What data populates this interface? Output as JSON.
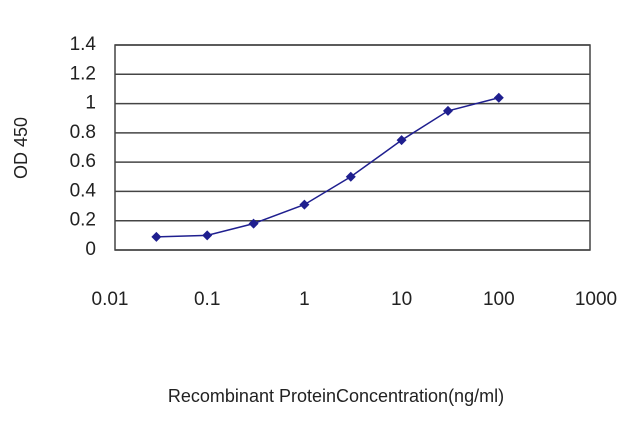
{
  "chart_data": {
    "type": "line",
    "x_label": "Recombinant ProteinConcentration(ng/ml)",
    "y_label": "OD 450",
    "x": [
      0.03,
      0.1,
      0.3,
      1,
      3,
      10,
      30,
      100
    ],
    "series": [
      {
        "color": "#1f1f8f",
        "values": [
          0.09,
          0.1,
          0.18,
          0.31,
          0.5,
          0.75,
          0.95,
          1.04
        ]
      }
    ],
    "xlim": [
      0.01,
      1000
    ],
    "xticks": [
      0.01,
      0.1,
      1,
      10,
      100,
      1000
    ],
    "xscale": "log",
    "ylim": [
      0,
      1.4
    ],
    "yticks": [
      0,
      0.2,
      0.4,
      0.6,
      0.8,
      1,
      1.2,
      1.4
    ],
    "grid": true
  }
}
